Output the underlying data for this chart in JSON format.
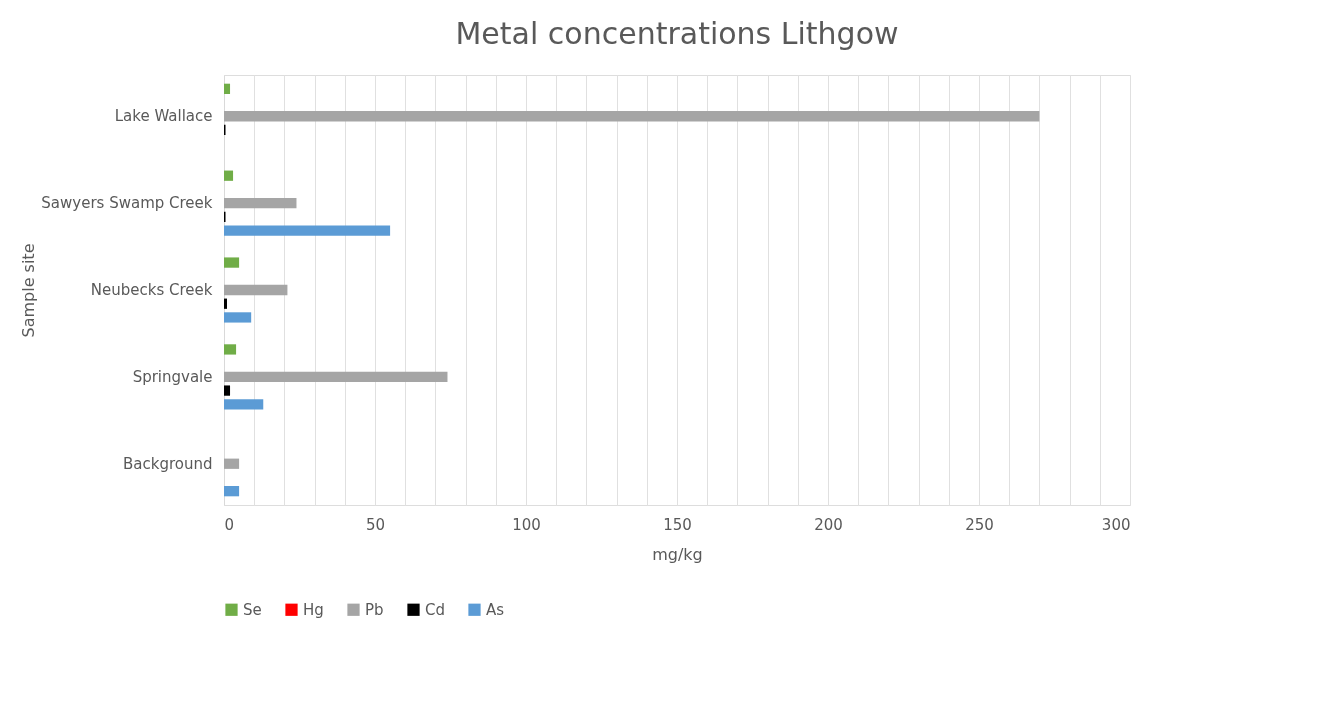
{
  "chart_data": {
    "type": "bar",
    "orientation": "horizontal",
    "title": "Metal concentrations Lithgow",
    "xlabel": "mg/kg",
    "ylabel": "Sample site",
    "categories": [
      "Lake Wallace",
      "Sawyers Swamp Creek",
      "Neubecks Creek",
      "Springvale",
      "Background"
    ],
    "series": [
      {
        "name": "Se",
        "color": "#70ad47",
        "values": [
          2,
          3,
          5,
          4,
          0
        ]
      },
      {
        "name": "Hg",
        "color": "#ff0000",
        "values": [
          0,
          0,
          0,
          0,
          0
        ]
      },
      {
        "name": "Pb",
        "color": "#a5a5a5",
        "values": [
          270,
          24,
          21,
          74,
          5
        ]
      },
      {
        "name": "Cd",
        "color": "#000000",
        "values": [
          0.5,
          0.5,
          1,
          2,
          0
        ]
      },
      {
        "name": "As",
        "color": "#5b9bd5",
        "values": [
          0,
          55,
          9,
          13,
          5
        ]
      }
    ],
    "xlim": [
      0,
      300
    ],
    "xticks": [
      0,
      {
        "value": 10,
        "label": null
      },
      {
        "value": 20,
        "label": null
      },
      {
        "value": 30,
        "label": null
      },
      {
        "value": 40,
        "label": null
      },
      50,
      {
        "value": 60,
        "label": null
      },
      {
        "value": 70,
        "label": null
      },
      {
        "value": 80,
        "label": null
      },
      {
        "value": 90,
        "label": null
      },
      100,
      {
        "value": 110,
        "label": null
      },
      {
        "value": 120,
        "label": null
      },
      {
        "value": 130,
        "label": null
      },
      {
        "value": 140,
        "label": null
      },
      150,
      {
        "value": 160,
        "label": null
      },
      {
        "value": 170,
        "label": null
      },
      {
        "value": 180,
        "label": null
      },
      {
        "value": 190,
        "label": null
      },
      200,
      {
        "value": 210,
        "label": null
      },
      {
        "value": 220,
        "label": null
      },
      {
        "value": 230,
        "label": null
      },
      {
        "value": 240,
        "label": null
      },
      250,
      {
        "value": 260,
        "label": null
      },
      {
        "value": 270,
        "label": null
      },
      {
        "value": 280,
        "label": null
      },
      {
        "value": 290,
        "label": null
      },
      300
    ],
    "grid": "x",
    "legend": "bottom"
  }
}
